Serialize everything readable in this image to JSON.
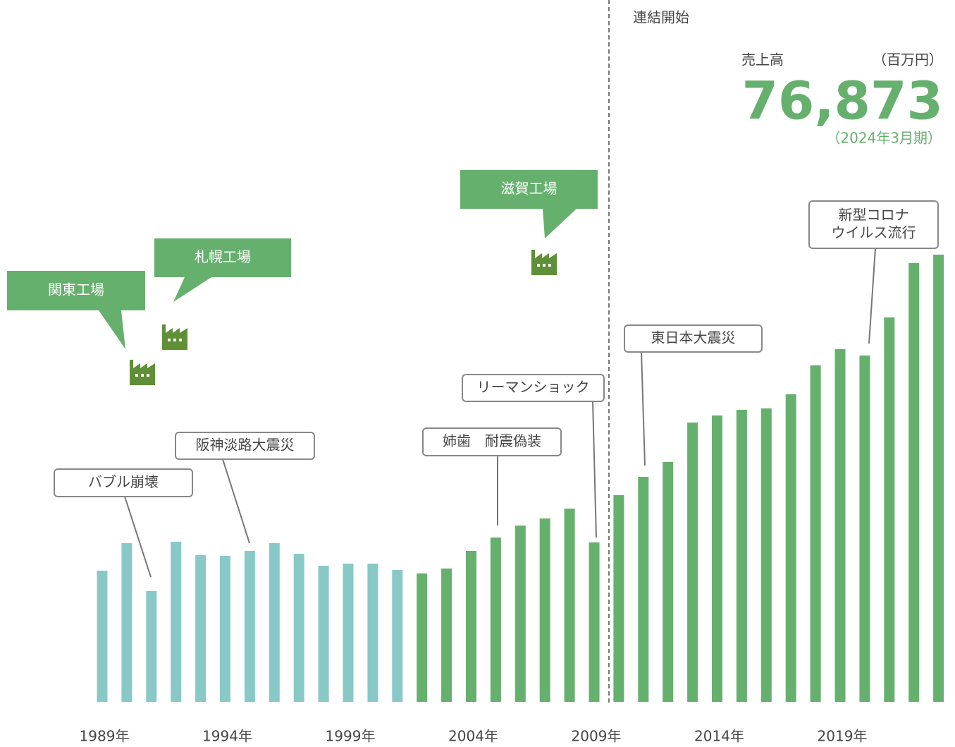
{
  "chart_data": {
    "type": "bar",
    "categories": [
      "1989年",
      null,
      null,
      null,
      null,
      "1994年",
      null,
      null,
      null,
      null,
      "1999年",
      null,
      null,
      null,
      null,
      "2004年",
      null,
      null,
      null,
      null,
      "2009年",
      null,
      null,
      null,
      null,
      "2014年",
      null,
      null,
      null,
      null,
      "2019年",
      null,
      null,
      null,
      null
    ],
    "values": [
      22550,
      27280,
      19040,
      27520,
      25220,
      25100,
      25950,
      27280,
      25460,
      23400,
      23760,
      23760,
      22670,
      22070,
      22920,
      25950,
      28250,
      30310,
      31520,
      33220,
      27400,
      35530,
      38680,
      41230,
      48010,
      49230,
      50200,
      50440,
      52870,
      57840,
      60630,
      59530,
      66080,
      75420,
      76873
    ],
    "colors": [
      "#88c9c7",
      "#88c9c7",
      "#88c9c7",
      "#88c9c7",
      "#88c9c7",
      "#88c9c7",
      "#88c9c7",
      "#88c9c7",
      "#88c9c7",
      "#88c9c7",
      "#88c9c7",
      "#88c9c7",
      "#88c9c7",
      "#66b06e",
      "#66b06e",
      "#66b06e",
      "#66b06e",
      "#66b06e",
      "#66b06e",
      "#66b06e",
      "#66b06e",
      "#66b06e",
      "#66b06e",
      "#66b06e",
      "#66b06e",
      "#66b06e",
      "#66b06e",
      "#66b06e",
      "#66b06e",
      "#66b06e",
      "#66b06e",
      "#66b06e",
      "#66b06e",
      "#66b06e",
      "#66b06e"
    ],
    "ylim": [
      0,
      76873
    ],
    "divider_label": "連結開始",
    "headline": {
      "label": "売上高",
      "unit": "（百万円）",
      "value": "76,873",
      "period": "（2024年3月期）"
    },
    "factories": [
      "関東工場",
      "札幌工場",
      "滋賀工場"
    ],
    "annotations": [
      [
        "バブル崩壊"
      ],
      [
        "阪神淡路大震災"
      ],
      [
        "姉歯　耐震偽装"
      ],
      [
        "リーマンショック"
      ],
      [
        "東日本大震災"
      ],
      [
        "新型コロナ",
        "ウイルス流行"
      ]
    ]
  }
}
